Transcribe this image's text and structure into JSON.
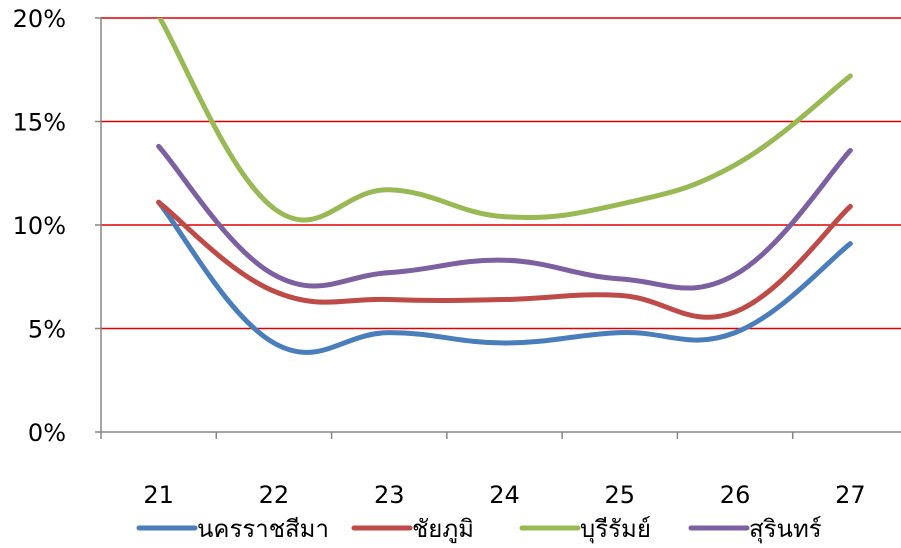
{
  "chart_data": {
    "type": "line",
    "title": "",
    "xlabel": "",
    "ylabel": "",
    "categories": [
      "21",
      "22",
      "23",
      "24",
      "25",
      "26",
      "27"
    ],
    "ylim": [
      0,
      20
    ],
    "yticks": [
      0,
      5,
      10,
      15,
      20
    ],
    "ytick_labels": [
      "0%",
      "5%",
      "10%",
      "15%",
      "20%"
    ],
    "grid": true,
    "grid_color": "#e00000",
    "smooth": true,
    "legend_position": "bottom",
    "series": [
      {
        "name": "นครราชสีมา",
        "color": "#4a7ebb",
        "values": [
          11.1,
          4.3,
          4.8,
          4.3,
          4.8,
          4.8,
          9.1
        ]
      },
      {
        "name": "ชัยภูมิ",
        "color": "#be4b48",
        "values": [
          11.1,
          6.8,
          6.4,
          6.4,
          6.6,
          5.8,
          10.9
        ]
      },
      {
        "name": "บุรีรัมย์",
        "color": "#98b954",
        "values": [
          20.1,
          10.8,
          11.7,
          10.4,
          11.0,
          12.9,
          17.2
        ]
      },
      {
        "name": "สุรินทร์",
        "color": "#7d60a0",
        "values": [
          13.8,
          7.6,
          7.7,
          8.3,
          7.4,
          7.6,
          13.6
        ]
      }
    ]
  }
}
